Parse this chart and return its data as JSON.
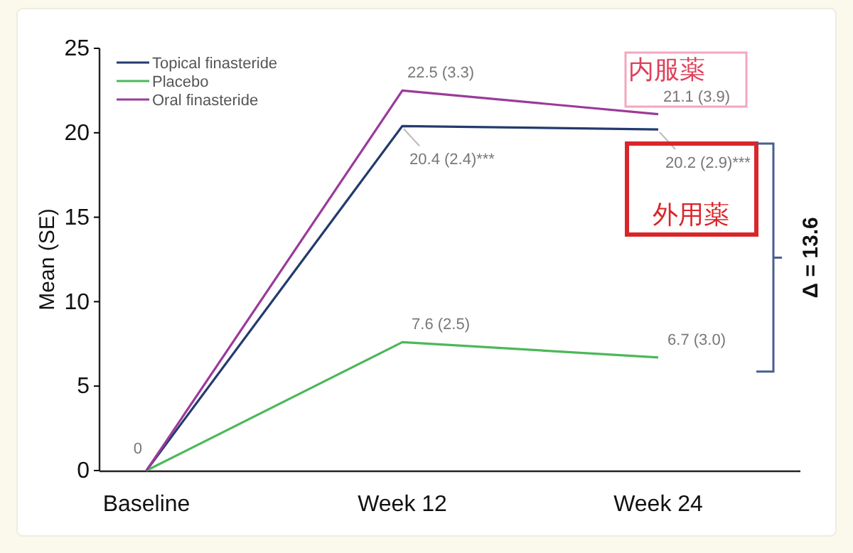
{
  "chart_data": {
    "type": "line",
    "ylabel": "Mean (SE)",
    "categories": [
      "Baseline",
      "Week 12",
      "Week 24"
    ],
    "ylim": [
      0,
      25
    ],
    "yticks": [
      0,
      5,
      10,
      15,
      20,
      25
    ],
    "grid": false,
    "legend": "top left",
    "marker": "none",
    "line_style": "solid",
    "series": [
      {
        "name": "Topical finasteride",
        "color": "#233b6e",
        "values": [
          0,
          20.4,
          20.2
        ],
        "value_labels": [
          "0",
          "20.4 (2.4)***",
          "20.2 (2.9)***"
        ]
      },
      {
        "name": "Placebo",
        "color": "#4cb85a",
        "values": [
          0,
          7.6,
          6.7
        ],
        "value_labels": [
          null,
          "7.6 (2.5)",
          "6.7 (3.0)"
        ]
      },
      {
        "name": "Oral finasteride",
        "color": "#9b3a9b",
        "values": [
          0,
          22.5,
          21.1
        ],
        "value_labels": [
          null,
          "22.5 (3.3)",
          "21.1 (3.9)"
        ]
      }
    ],
    "annotations": [
      "内服薬",
      "外用薬",
      "Δ = 13.6"
    ]
  }
}
